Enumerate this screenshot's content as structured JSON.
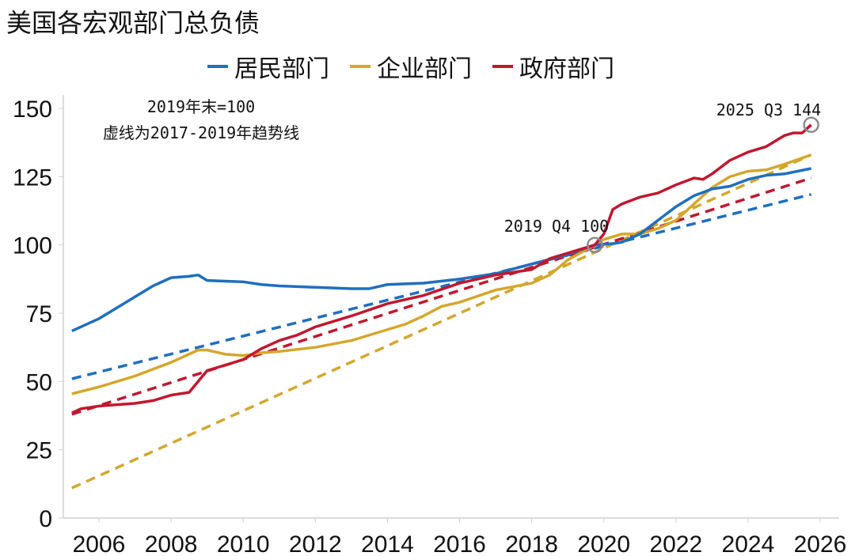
{
  "title": "美国各宏观部门总负债",
  "chart_data": {
    "type": "line",
    "title": "美国各宏观部门总负债",
    "xlim": [
      2005,
      2026.5
    ],
    "ylim": [
      0,
      150
    ],
    "yticks": [
      0,
      25,
      50,
      75,
      100,
      125,
      150
    ],
    "xticks": [
      2006,
      2008,
      2010,
      2012,
      2014,
      2016,
      2018,
      2020,
      2022,
      2024,
      2026
    ],
    "grid": false,
    "legend_position": "top",
    "annotations": {
      "base_note": "2019年末=100",
      "trend_note": "虚线为2017-2019年趋势线",
      "point_2019": {
        "label": "2019 Q4 100",
        "x": 2019.75,
        "y": 100
      },
      "point_2025": {
        "label": "2025 Q3 144",
        "x": 2025.75,
        "y": 144
      }
    },
    "series": [
      {
        "name": "居民部门",
        "color": "#1f6fbf",
        "points": [
          [
            2005.25,
            68.5
          ],
          [
            2006,
            73
          ],
          [
            2007,
            81
          ],
          [
            2007.5,
            85
          ],
          [
            2008,
            88
          ],
          [
            2008.5,
            88.5
          ],
          [
            2008.75,
            89
          ],
          [
            2009,
            87
          ],
          [
            2010,
            86.5
          ],
          [
            2010.5,
            85.5
          ],
          [
            2011,
            85
          ],
          [
            2012,
            84.5
          ],
          [
            2013,
            84
          ],
          [
            2013.5,
            84
          ],
          [
            2014,
            85.5
          ],
          [
            2015,
            86
          ],
          [
            2016,
            87.5
          ],
          [
            2017,
            89.5
          ],
          [
            2018,
            93
          ],
          [
            2019,
            96.5
          ],
          [
            2019.75,
            100
          ],
          [
            2020.25,
            100.5
          ],
          [
            2020.5,
            101
          ],
          [
            2021,
            104
          ],
          [
            2021.5,
            109
          ],
          [
            2022,
            114
          ],
          [
            2022.5,
            118
          ],
          [
            2023,
            120.5
          ],
          [
            2023.5,
            121.5
          ],
          [
            2024,
            124
          ],
          [
            2024.5,
            125.5
          ],
          [
            2025,
            126
          ],
          [
            2025.75,
            128
          ]
        ],
        "trend": [
          [
            2005.25,
            51
          ],
          [
            2025.75,
            118.5
          ]
        ]
      },
      {
        "name": "企业部门",
        "color": "#d4a72c",
        "points": [
          [
            2005.25,
            45.5
          ],
          [
            2006,
            48
          ],
          [
            2007,
            52
          ],
          [
            2008,
            57
          ],
          [
            2008.75,
            61.5
          ],
          [
            2009,
            61.5
          ],
          [
            2009.5,
            60
          ],
          [
            2010,
            59.5
          ],
          [
            2010.5,
            60.5
          ],
          [
            2011,
            61
          ],
          [
            2012,
            62.5
          ],
          [
            2013,
            65
          ],
          [
            2014,
            69
          ],
          [
            2014.5,
            71
          ],
          [
            2015,
            74
          ],
          [
            2015.5,
            77.5
          ],
          [
            2016,
            79
          ],
          [
            2017,
            83.5
          ],
          [
            2018,
            86
          ],
          [
            2018.5,
            89
          ],
          [
            2019,
            94.5
          ],
          [
            2019.75,
            100
          ],
          [
            2020,
            102
          ],
          [
            2020.5,
            104
          ],
          [
            2021,
            104
          ],
          [
            2021.5,
            106
          ],
          [
            2022,
            109
          ],
          [
            2022.5,
            115
          ],
          [
            2023,
            121
          ],
          [
            2023.5,
            125
          ],
          [
            2024,
            127
          ],
          [
            2024.5,
            127.5
          ],
          [
            2025,
            129.5
          ],
          [
            2025.75,
            133
          ]
        ],
        "trend": [
          [
            2005.25,
            11
          ],
          [
            2025.75,
            133
          ]
        ]
      },
      {
        "name": "政府部门",
        "color": "#c0182f",
        "points": [
          [
            2005.25,
            38.5
          ],
          [
            2005.5,
            40
          ],
          [
            2006,
            41
          ],
          [
            2007,
            42
          ],
          [
            2007.5,
            43
          ],
          [
            2008,
            45
          ],
          [
            2008.5,
            46
          ],
          [
            2009,
            54
          ],
          [
            2009.5,
            56
          ],
          [
            2010,
            58
          ],
          [
            2010.5,
            62
          ],
          [
            2011,
            65
          ],
          [
            2011.5,
            67
          ],
          [
            2012,
            70
          ],
          [
            2013,
            74
          ],
          [
            2014,
            78.5
          ],
          [
            2014.5,
            80
          ],
          [
            2015,
            81.5
          ],
          [
            2016,
            86
          ],
          [
            2017,
            89
          ],
          [
            2018,
            91
          ],
          [
            2018.5,
            95
          ],
          [
            2019,
            97
          ],
          [
            2019.75,
            100
          ],
          [
            2020,
            104
          ],
          [
            2020.25,
            113
          ],
          [
            2020.5,
            115
          ],
          [
            2021,
            117.5
          ],
          [
            2021.5,
            119
          ],
          [
            2022,
            122
          ],
          [
            2022.5,
            124.5
          ],
          [
            2022.75,
            124
          ],
          [
            2023,
            126
          ],
          [
            2023.5,
            131
          ],
          [
            2024,
            134
          ],
          [
            2024.5,
            136
          ],
          [
            2025,
            140
          ],
          [
            2025.25,
            141
          ],
          [
            2025.5,
            141
          ],
          [
            2025.75,
            144
          ]
        ],
        "trend": [
          [
            2005.25,
            38
          ],
          [
            2025.75,
            124.5
          ]
        ]
      }
    ]
  }
}
